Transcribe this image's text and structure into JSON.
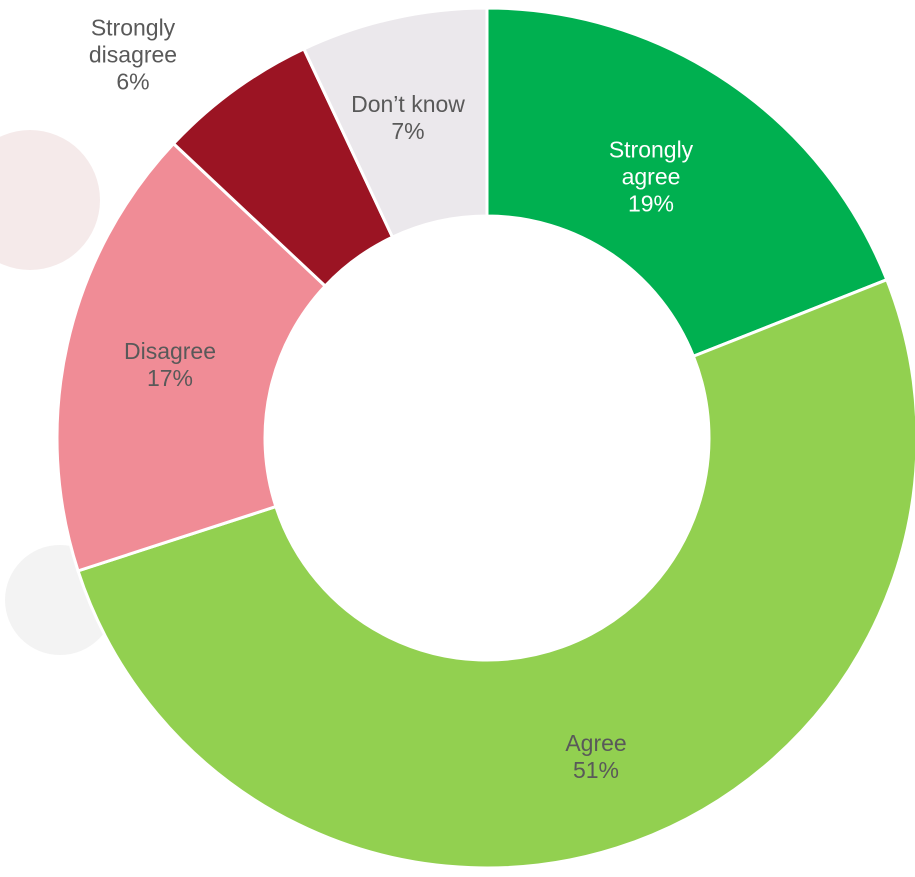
{
  "chart_data": {
    "type": "donut",
    "categories": [
      "Strongly agree",
      "Agree",
      "Disagree",
      "Strongly disagree",
      "Don’t know"
    ],
    "values": [
      19,
      51,
      17,
      6,
      7
    ],
    "value_labels": [
      "19%",
      "51%",
      "17%",
      "6%",
      "7%"
    ],
    "colors": [
      "#00b050",
      "#92d050",
      "#f08c96",
      "#9b1423",
      "#ebe8ec"
    ]
  }
}
